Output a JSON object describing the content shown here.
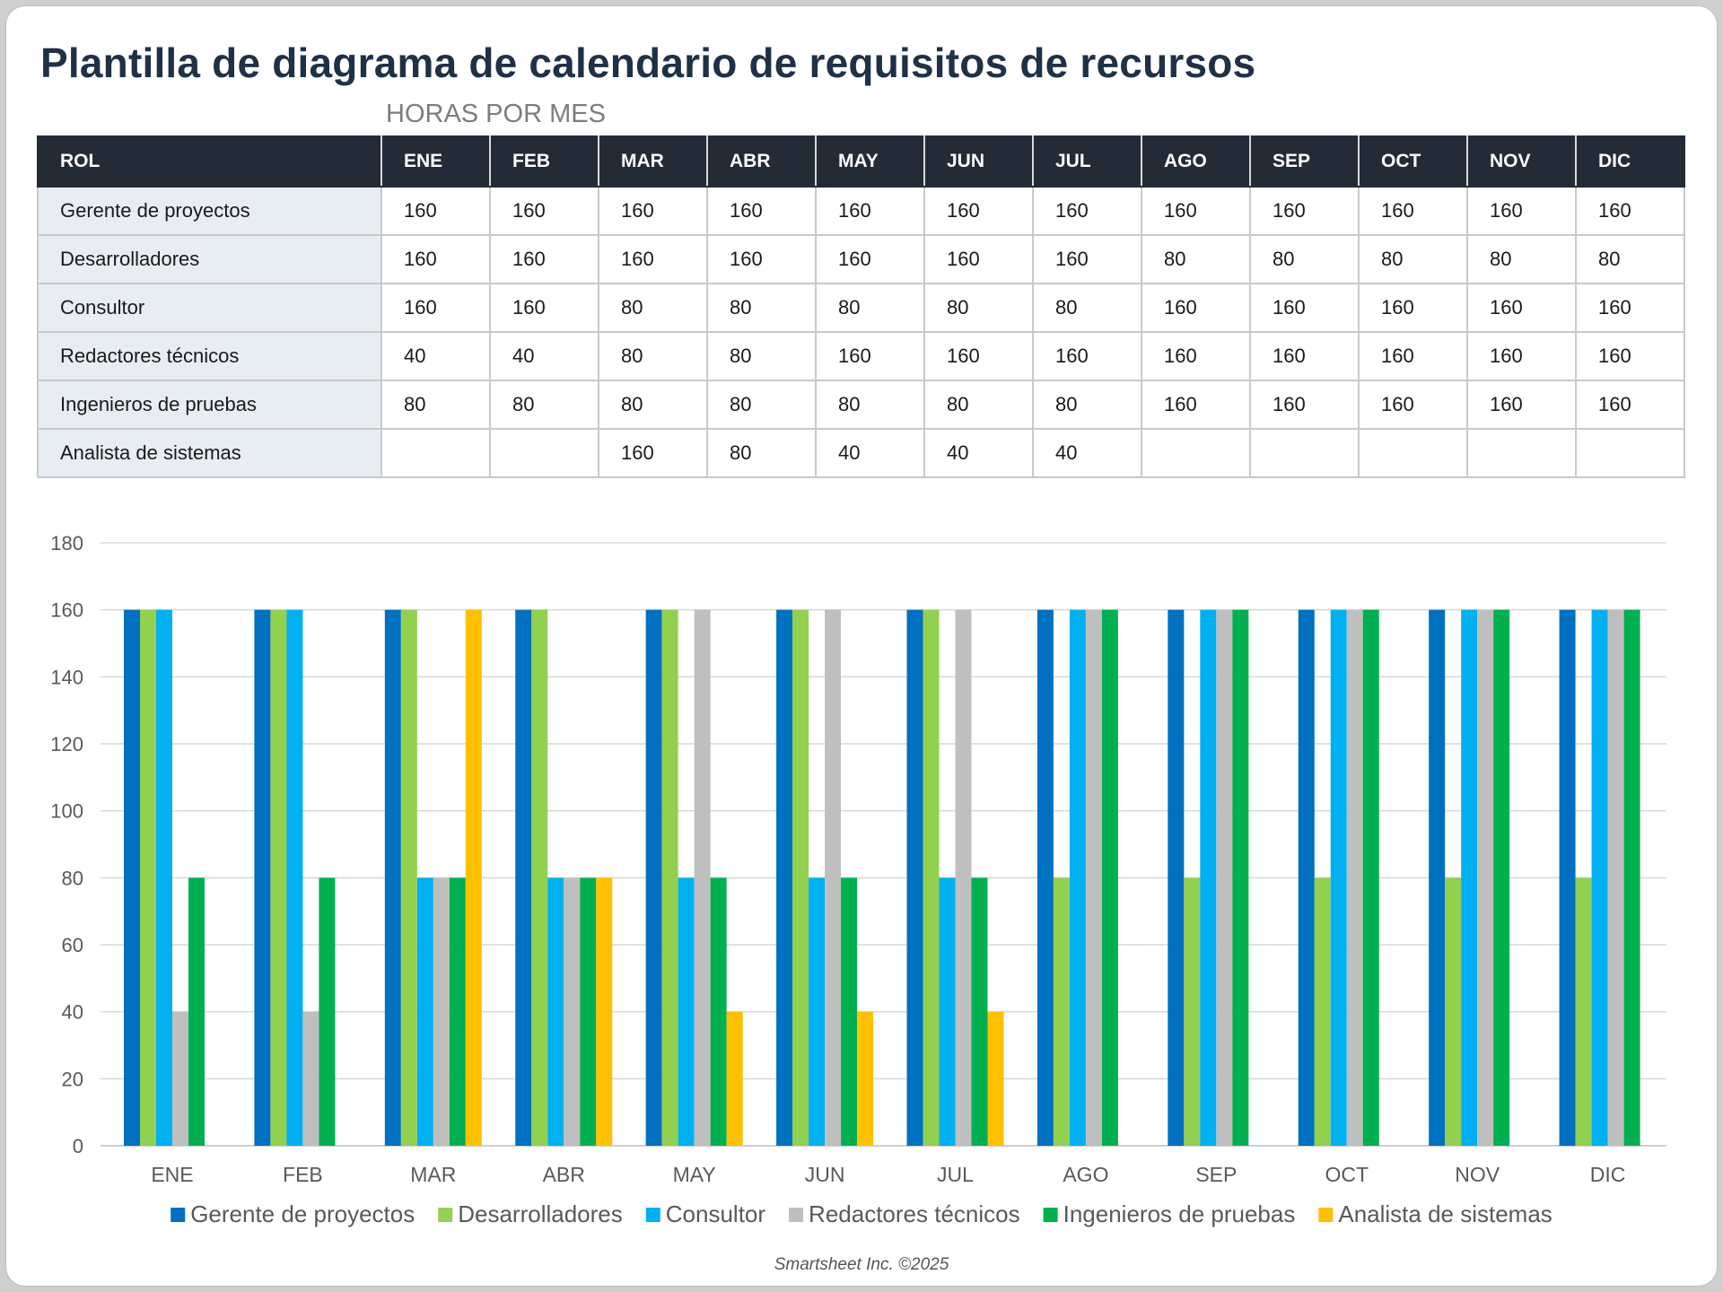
{
  "title": "Plantilla de diagrama de calendario de requisitos de recursos",
  "subtitle": "HORAS POR MES",
  "table": {
    "headers": [
      "ROL",
      "ENE",
      "FEB",
      "MAR",
      "ABR",
      "MAY",
      "JUN",
      "JUL",
      "AGO",
      "SEP",
      "OCT",
      "NOV",
      "DIC"
    ],
    "rows": [
      {
        "role": "Gerente de proyectos",
        "values": [
          "160",
          "160",
          "160",
          "160",
          "160",
          "160",
          "160",
          "160",
          "160",
          "160",
          "160",
          "160"
        ]
      },
      {
        "role": "Desarrolladores",
        "values": [
          "160",
          "160",
          "160",
          "160",
          "160",
          "160",
          "160",
          "80",
          "80",
          "80",
          "80",
          "80"
        ]
      },
      {
        "role": "Consultor",
        "values": [
          "160",
          "160",
          "80",
          "80",
          "80",
          "80",
          "80",
          "160",
          "160",
          "160",
          "160",
          "160"
        ]
      },
      {
        "role": "Redactores técnicos",
        "values": [
          "40",
          "40",
          "80",
          "80",
          "160",
          "160",
          "160",
          "160",
          "160",
          "160",
          "160",
          "160"
        ]
      },
      {
        "role": "Ingenieros de pruebas",
        "values": [
          "80",
          "80",
          "80",
          "80",
          "80",
          "80",
          "80",
          "160",
          "160",
          "160",
          "160",
          "160"
        ]
      },
      {
        "role": "Analista de sistemas",
        "values": [
          "",
          "",
          "160",
          "80",
          "40",
          "40",
          "40",
          "",
          "",
          "",
          "",
          ""
        ]
      }
    ]
  },
  "chart_data": {
    "type": "bar",
    "categories": [
      "ENE",
      "FEB",
      "MAR",
      "ABR",
      "MAY",
      "JUN",
      "JUL",
      "AGO",
      "SEP",
      "OCT",
      "NOV",
      "DIC"
    ],
    "series": [
      {
        "name": "Gerente de proyectos",
        "color": "#0070c0",
        "values": [
          160,
          160,
          160,
          160,
          160,
          160,
          160,
          160,
          160,
          160,
          160,
          160
        ]
      },
      {
        "name": "Desarrolladores",
        "color": "#92d050",
        "values": [
          160,
          160,
          160,
          160,
          160,
          160,
          160,
          80,
          80,
          80,
          80,
          80
        ]
      },
      {
        "name": "Consultor",
        "color": "#00b0f0",
        "values": [
          160,
          160,
          80,
          80,
          80,
          80,
          80,
          160,
          160,
          160,
          160,
          160
        ]
      },
      {
        "name": "Redactores técnicos",
        "color": "#bfbfbf",
        "values": [
          40,
          40,
          80,
          80,
          160,
          160,
          160,
          160,
          160,
          160,
          160,
          160
        ]
      },
      {
        "name": "Ingenieros de pruebas",
        "color": "#00b050",
        "values": [
          80,
          80,
          80,
          80,
          80,
          80,
          80,
          160,
          160,
          160,
          160,
          160
        ]
      },
      {
        "name": "Analista de sistemas",
        "color": "#ffc000",
        "values": [
          null,
          null,
          160,
          80,
          40,
          40,
          40,
          null,
          null,
          null,
          null,
          null
        ]
      }
    ],
    "ylim": [
      0,
      180
    ],
    "yticks": [
      0,
      20,
      40,
      60,
      80,
      100,
      120,
      140,
      160,
      180
    ],
    "grid": true,
    "legend": "bottom"
  },
  "footer": "Smartsheet Inc. ©2025"
}
